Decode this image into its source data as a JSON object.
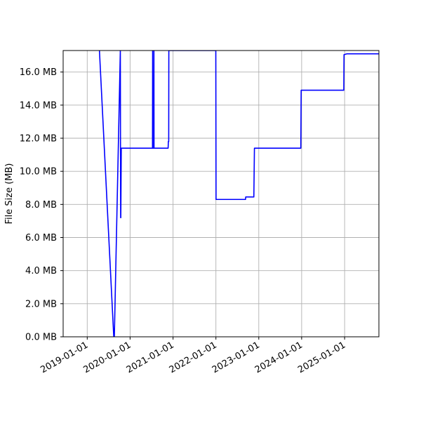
{
  "chart_data": {
    "type": "line",
    "title": "",
    "xlabel": "",
    "ylabel": "File Size (MB)",
    "x_tick_labels": [
      "2019-01-01",
      "2020-01-01",
      "2021-01-01",
      "2022-01-01",
      "2023-01-01",
      "2024-01-01",
      "2025-01-01"
    ],
    "y_tick_labels": [
      "0.0 MB",
      "2.0 MB",
      "4.0 MB",
      "6.0 MB",
      "8.0 MB",
      "10.0 MB",
      "12.0 MB",
      "14.0 MB",
      "16.0 MB"
    ],
    "x_ticks": [
      "2019-01-01",
      "2020-01-01",
      "2021-01-01",
      "2022-01-01",
      "2023-01-01",
      "2024-01-01",
      "2025-01-01"
    ],
    "y_ticks": [
      0,
      2,
      4,
      6,
      8,
      10,
      12,
      14,
      16
    ],
    "xlim": [
      "2018-06-10",
      "2025-10-20"
    ],
    "ylim": [
      0,
      17.3
    ],
    "grid": true,
    "series": [
      {
        "color": "#0000ff",
        "x": [
          "2019-04-15",
          "2019-08-15",
          "2019-08-20",
          "2019-10-10",
          "2019-10-12",
          "2019-10-13",
          "2019-10-14",
          "2019-10-18",
          "2019-10-22",
          "2019-10-28",
          "2020-07-10",
          "2020-07-11",
          "2020-07-12",
          "2020-07-20",
          "2020-07-22",
          "2020-07-23",
          "2020-11-20",
          "2020-11-22",
          "2020-11-25",
          "2020-11-26",
          "2021-12-31",
          "2022-01-02",
          "2022-09-10",
          "2022-09-12",
          "2022-11-20",
          "2022-11-25",
          "2023-12-25",
          "2023-12-28",
          "2024-12-25",
          "2024-12-27",
          "2025-01-20",
          "2025-10-20"
        ],
        "y": [
          17.3,
          0.0,
          0.0,
          17.3,
          9.0,
          7.2,
          7.2,
          11.4,
          11.4,
          11.4,
          11.4,
          17.3,
          11.4,
          11.4,
          17.3,
          11.4,
          11.4,
          11.8,
          11.8,
          17.3,
          17.3,
          8.3,
          8.3,
          8.45,
          8.45,
          11.4,
          11.4,
          14.9,
          14.9,
          17.05,
          17.1,
          17.1
        ]
      }
    ]
  }
}
